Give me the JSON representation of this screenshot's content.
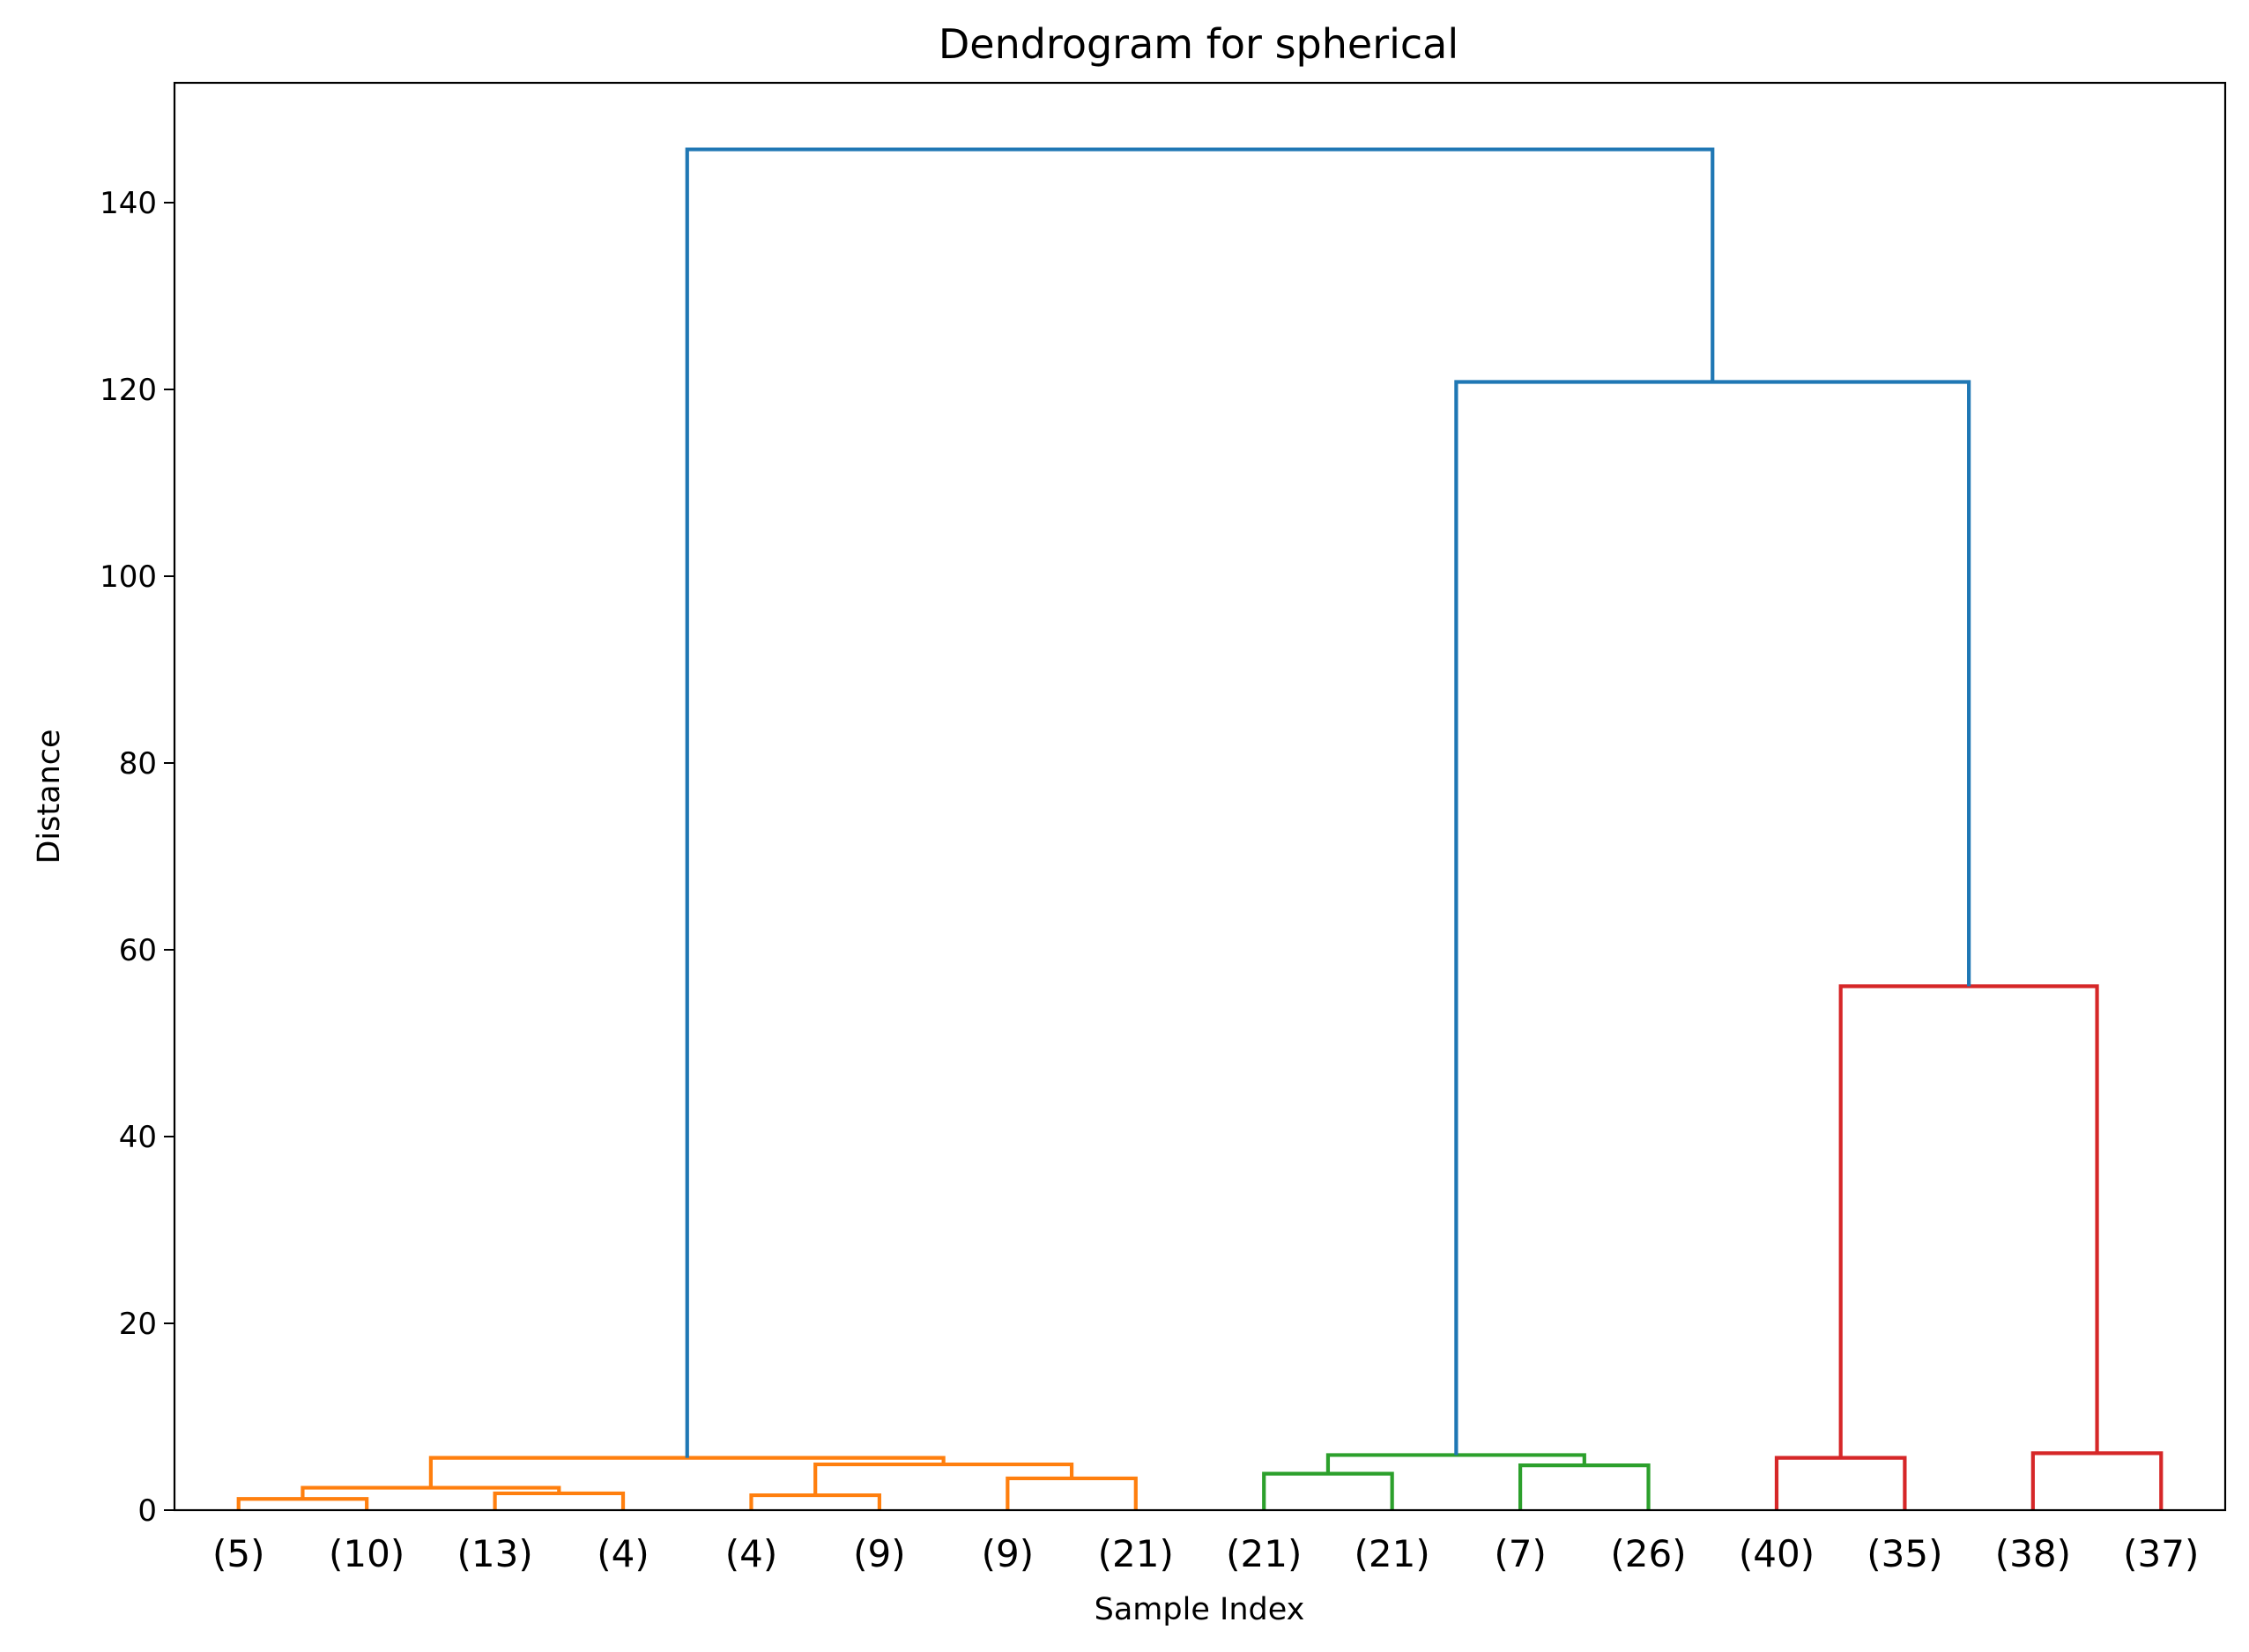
{
  "chart_data": {
    "type": "dendrogram",
    "title": "Dendrogram for spherical",
    "xlabel": "Sample Index",
    "ylabel": "Distance",
    "ylim": [
      0,
      153
    ],
    "yticks": [
      0,
      20,
      40,
      60,
      80,
      100,
      120,
      140
    ],
    "leaves": [
      "(5)",
      "(10)",
      "(13)",
      "(4)",
      "(4)",
      "(9)",
      "(9)",
      "(21)",
      "(21)",
      "(21)",
      "(7)",
      "(26)",
      "(40)",
      "(35)",
      "(38)",
      "(37)"
    ],
    "colors": {
      "orange": "#ff7f0e",
      "green": "#2ca02c",
      "red": "#d62728",
      "blue": "#1f77b4"
    },
    "links": [
      {
        "left": 0,
        "right": 1,
        "height": 1.2,
        "color": "orange"
      },
      {
        "left": 2,
        "right": 3,
        "height": 1.8,
        "color": "orange"
      },
      {
        "left": "l0",
        "right": "l1",
        "height": 2.4,
        "color": "orange"
      },
      {
        "left": 4,
        "right": 5,
        "height": 1.6,
        "color": "orange"
      },
      {
        "left": 6,
        "right": 7,
        "height": 3.4,
        "color": "orange"
      },
      {
        "left": "l3",
        "right": "l4",
        "height": 4.9,
        "color": "orange"
      },
      {
        "left": "l2",
        "right": "l5",
        "height": 5.6,
        "color": "orange"
      },
      {
        "left": 8,
        "right": 9,
        "height": 3.9,
        "color": "green"
      },
      {
        "left": 10,
        "right": 11,
        "height": 4.8,
        "color": "green"
      },
      {
        "left": "l7",
        "right": "l8",
        "height": 5.9,
        "color": "green"
      },
      {
        "left": 12,
        "right": 13,
        "height": 5.6,
        "color": "red"
      },
      {
        "left": 14,
        "right": 15,
        "height": 6.1,
        "color": "red"
      },
      {
        "left": "l10",
        "right": "l11",
        "height": 56.1,
        "color": "red"
      },
      {
        "left": "l9",
        "right": "l12",
        "height": 120.8,
        "color": "blue"
      },
      {
        "left": "l6",
        "right": "l13",
        "height": 145.7,
        "color": "blue"
      }
    ]
  }
}
